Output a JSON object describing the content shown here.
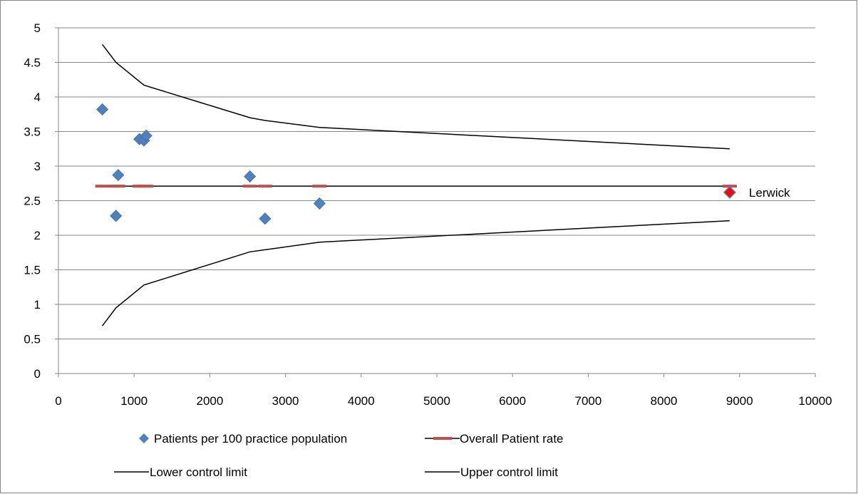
{
  "chart_data": {
    "type": "scatter",
    "title": "",
    "xlabel": "",
    "ylabel": "",
    "xlim": [
      0,
      10000
    ],
    "ylim": [
      0,
      5
    ],
    "x_ticks": [
      "0",
      "1000",
      "2000",
      "3000",
      "4000",
      "5000",
      "6000",
      "7000",
      "8000",
      "9000",
      "10000"
    ],
    "y_ticks": [
      "0",
      "0.5",
      "1",
      "1.5",
      "2",
      "2.5",
      "3",
      "3.5",
      "4",
      "4.5",
      "5"
    ],
    "grid": "horizontal",
    "legend_position": "bottom",
    "series": [
      {
        "name": "Patients per 100 practice population",
        "kind": "scatter",
        "color": "#4f81bd",
        "marker": "diamond",
        "points": [
          {
            "x": 580,
            "y": 3.82
          },
          {
            "x": 760,
            "y": 2.28
          },
          {
            "x": 790,
            "y": 2.87
          },
          {
            "x": 1070,
            "y": 3.39
          },
          {
            "x": 1130,
            "y": 3.37
          },
          {
            "x": 1160,
            "y": 3.44
          },
          {
            "x": 2530,
            "y": 2.85
          },
          {
            "x": 2730,
            "y": 2.24
          },
          {
            "x": 3450,
            "y": 2.46
          },
          {
            "x": 8870,
            "y": 2.62
          }
        ]
      },
      {
        "name": "Overall Patient rate",
        "kind": "dash-marker",
        "color": "#c0504d",
        "points": [
          {
            "x": 580,
            "y": 2.71
          },
          {
            "x": 760,
            "y": 2.71
          },
          {
            "x": 790,
            "y": 2.71
          },
          {
            "x": 1070,
            "y": 2.71
          },
          {
            "x": 1130,
            "y": 2.71
          },
          {
            "x": 1160,
            "y": 2.71
          },
          {
            "x": 2530,
            "y": 2.71
          },
          {
            "x": 2730,
            "y": 2.71
          },
          {
            "x": 3450,
            "y": 2.71
          },
          {
            "x": 8870,
            "y": 2.71
          }
        ],
        "line_x": [
          580,
          8870
        ]
      },
      {
        "name": "Lower control limit",
        "kind": "line",
        "color": "#000000",
        "points": [
          {
            "x": 580,
            "y": 0.69
          },
          {
            "x": 760,
            "y": 0.95
          },
          {
            "x": 1130,
            "y": 1.28
          },
          {
            "x": 2530,
            "y": 1.76
          },
          {
            "x": 2730,
            "y": 1.79
          },
          {
            "x": 3450,
            "y": 1.9
          },
          {
            "x": 8870,
            "y": 2.21
          }
        ]
      },
      {
        "name": "Upper control limit",
        "kind": "line",
        "color": "#000000",
        "points": [
          {
            "x": 580,
            "y": 4.76
          },
          {
            "x": 760,
            "y": 4.5
          },
          {
            "x": 1130,
            "y": 4.17
          },
          {
            "x": 2530,
            "y": 3.7
          },
          {
            "x": 2730,
            "y": 3.66
          },
          {
            "x": 3450,
            "y": 3.56
          },
          {
            "x": 8870,
            "y": 3.25
          }
        ]
      }
    ],
    "highlight": {
      "x": 8870,
      "y": 2.62,
      "color": "#ff0000",
      "label": "Lerwick"
    }
  }
}
